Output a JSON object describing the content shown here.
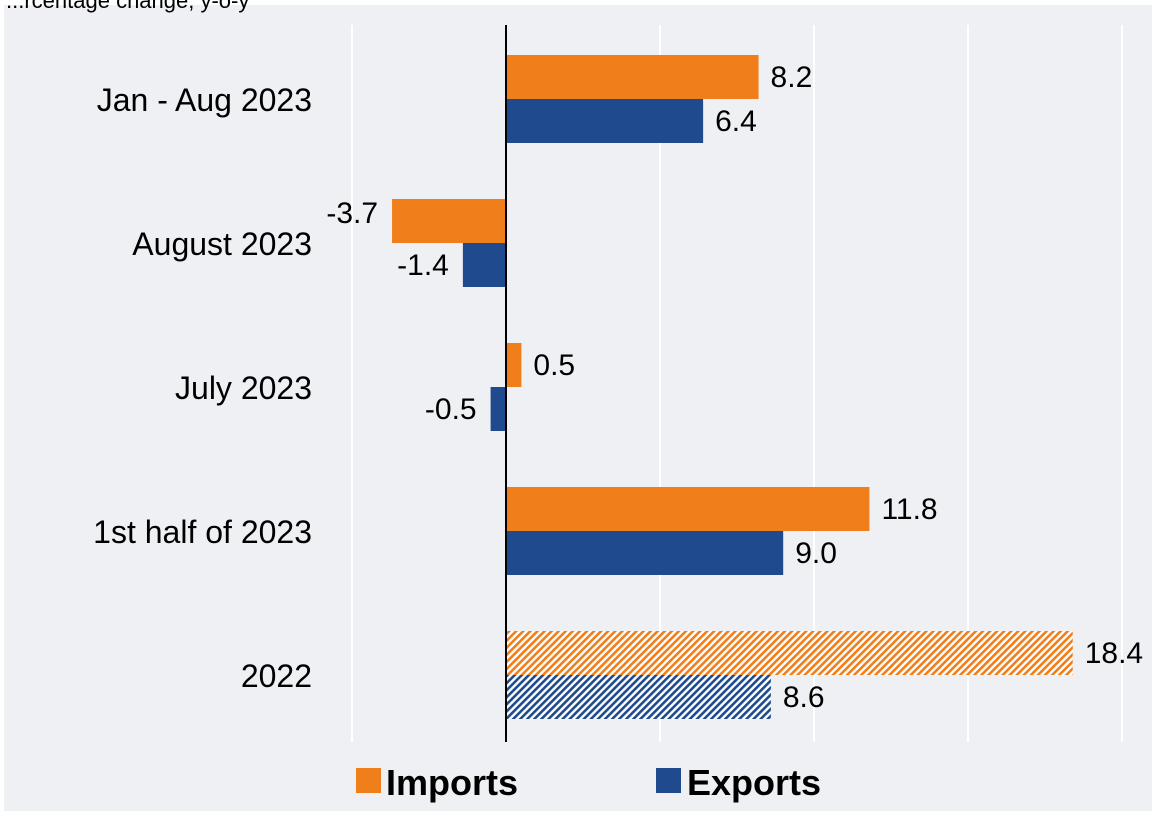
{
  "header_text": "...rcentage change, y-o-y",
  "chart_data": {
    "type": "bar",
    "orientation": "horizontal",
    "categories": [
      "Jan - Aug 2023",
      "August 2023",
      "July 2023",
      "1st half of 2023",
      "2022"
    ],
    "series": [
      {
        "name": "Imports",
        "color": "#f07f1b",
        "values": [
          8.2,
          -3.7,
          0.5,
          11.8,
          18.4
        ],
        "value_labels": [
          "8.2",
          "-3.7",
          "0.5",
          "11.8",
          "18.4"
        ]
      },
      {
        "name": "Exports",
        "color": "#1f4b8e",
        "values": [
          6.4,
          -1.4,
          -0.5,
          9.0,
          8.6
        ],
        "value_labels": [
          "6.4",
          "-1.4",
          "-0.5",
          "9.0",
          "8.6"
        ]
      }
    ],
    "hatched_categories": [
      "2022"
    ],
    "xlim": [
      -5,
      20
    ],
    "grid": "vertical gridlines, white",
    "legend_placement": "bottom-center",
    "title": "",
    "xlabel": "",
    "ylabel": ""
  },
  "legend": {
    "imports_label": "Imports",
    "exports_label": "Exports"
  }
}
